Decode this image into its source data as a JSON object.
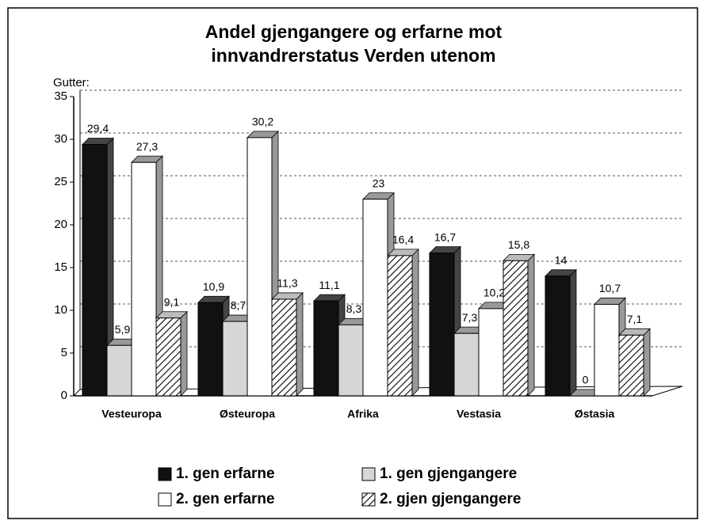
{
  "chart_data": {
    "type": "bar",
    "title": [
      "Andel gjengangere og erfarne mot",
      "innvandrerstatus Verden utenom"
    ],
    "y_label": "Gutter:",
    "categories": [
      "Vesteuropa",
      "Østeuropa",
      "Afrika",
      "Vestasia",
      "Østasia"
    ],
    "series": [
      {
        "name": "1. gen erfarne",
        "color": "#111111",
        "values": [
          29.4,
          10.9,
          11.1,
          16.7,
          14
        ],
        "value_labels": [
          "29,4",
          "10,9",
          "11,1",
          "16,7",
          "14"
        ]
      },
      {
        "name": "1. gen gjengangere",
        "color": "#d6d6d6",
        "values": [
          5.9,
          8.7,
          8.3,
          7.3,
          0
        ],
        "value_labels": [
          "5,9",
          "8,7",
          "8,3",
          "7,3",
          "0"
        ]
      },
      {
        "name": "2. gen erfarne",
        "color": "#ffffff",
        "values": [
          27.3,
          30.2,
          23,
          10.2,
          10.7
        ],
        "value_labels": [
          "27,3",
          "30,2",
          "23",
          "10,2",
          "10,7"
        ]
      },
      {
        "name": "2. gjen gjengangere",
        "color": "#ffffff",
        "pattern": "diagonal-hatch",
        "values": [
          9.1,
          11.3,
          16.4,
          15.8,
          7.1
        ],
        "value_labels": [
          "9,1",
          "11,3",
          "16,4",
          "15,8",
          "7,1"
        ]
      }
    ],
    "ylim": [
      0,
      35
    ],
    "yticks": [
      0,
      5,
      10,
      15,
      20,
      25,
      30,
      35
    ],
    "grid": true,
    "legend": "bottom"
  }
}
